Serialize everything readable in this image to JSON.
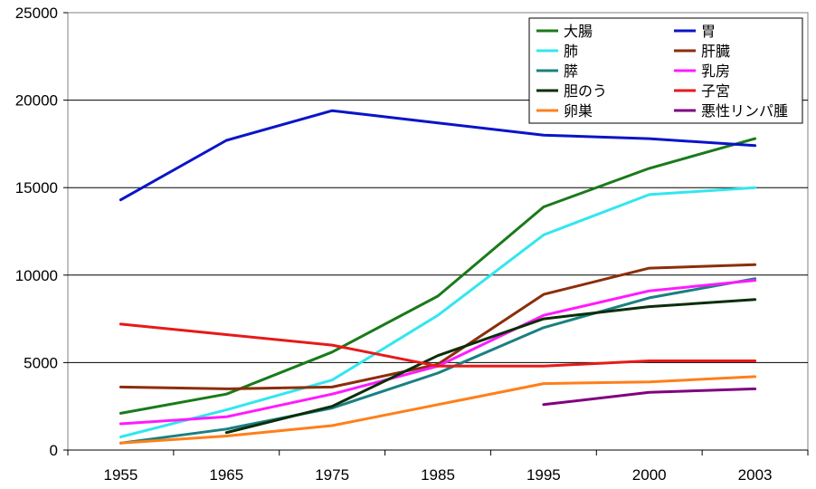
{
  "chart_data": {
    "type": "line",
    "title": "",
    "xlabel": "",
    "ylabel": "",
    "ylim": [
      0,
      25000
    ],
    "yticks": [
      0,
      5000,
      10000,
      15000,
      20000,
      25000
    ],
    "x_positions": [
      1955,
      1965,
      1975,
      1985,
      1995,
      2000,
      2003
    ],
    "categories": [
      "1955",
      "1965",
      "1975",
      "1985",
      "1995",
      "2000",
      "2003"
    ],
    "grid": "horizontal",
    "legend_position": "top-right",
    "series": [
      {
        "name": "大腸",
        "color": "#1a7a1a",
        "values": [
          2100,
          3200,
          5600,
          8800,
          13900,
          16100,
          17800
        ]
      },
      {
        "name": "胃",
        "color": "#0a14c8",
        "values": [
          14300,
          17700,
          19400,
          18700,
          18000,
          17800,
          17400
        ]
      },
      {
        "name": "肺",
        "color": "#33e6ee",
        "values": [
          750,
          2300,
          4000,
          7700,
          12300,
          14600,
          15000
        ]
      },
      {
        "name": "肝臓",
        "color": "#8b2e0a",
        "values": [
          3600,
          3500,
          3600,
          4900,
          8900,
          10400,
          10600
        ]
      },
      {
        "name": "膵",
        "color": "#1a8080",
        "values": [
          400,
          1200,
          2400,
          4400,
          7000,
          8700,
          9800
        ]
      },
      {
        "name": "乳房",
        "color": "#ff1aff",
        "values": [
          1500,
          1900,
          3200,
          4800,
          7700,
          9100,
          9700
        ]
      },
      {
        "name": "胆のう",
        "color": "#0a2e0a",
        "values": [
          null,
          1000,
          2500,
          5400,
          7500,
          8200,
          8600
        ]
      },
      {
        "name": "子宮",
        "color": "#e61a1a",
        "values": [
          7200,
          6600,
          6000,
          4800,
          4800,
          5100,
          5100
        ]
      },
      {
        "name": "卵巣",
        "color": "#ff7f1a",
        "values": [
          400,
          800,
          1400,
          2600,
          3800,
          3900,
          4200
        ]
      },
      {
        "name": "悪性リンパ腫",
        "color": "#800080",
        "values": [
          null,
          null,
          null,
          null,
          2600,
          3300,
          3500
        ]
      }
    ]
  }
}
